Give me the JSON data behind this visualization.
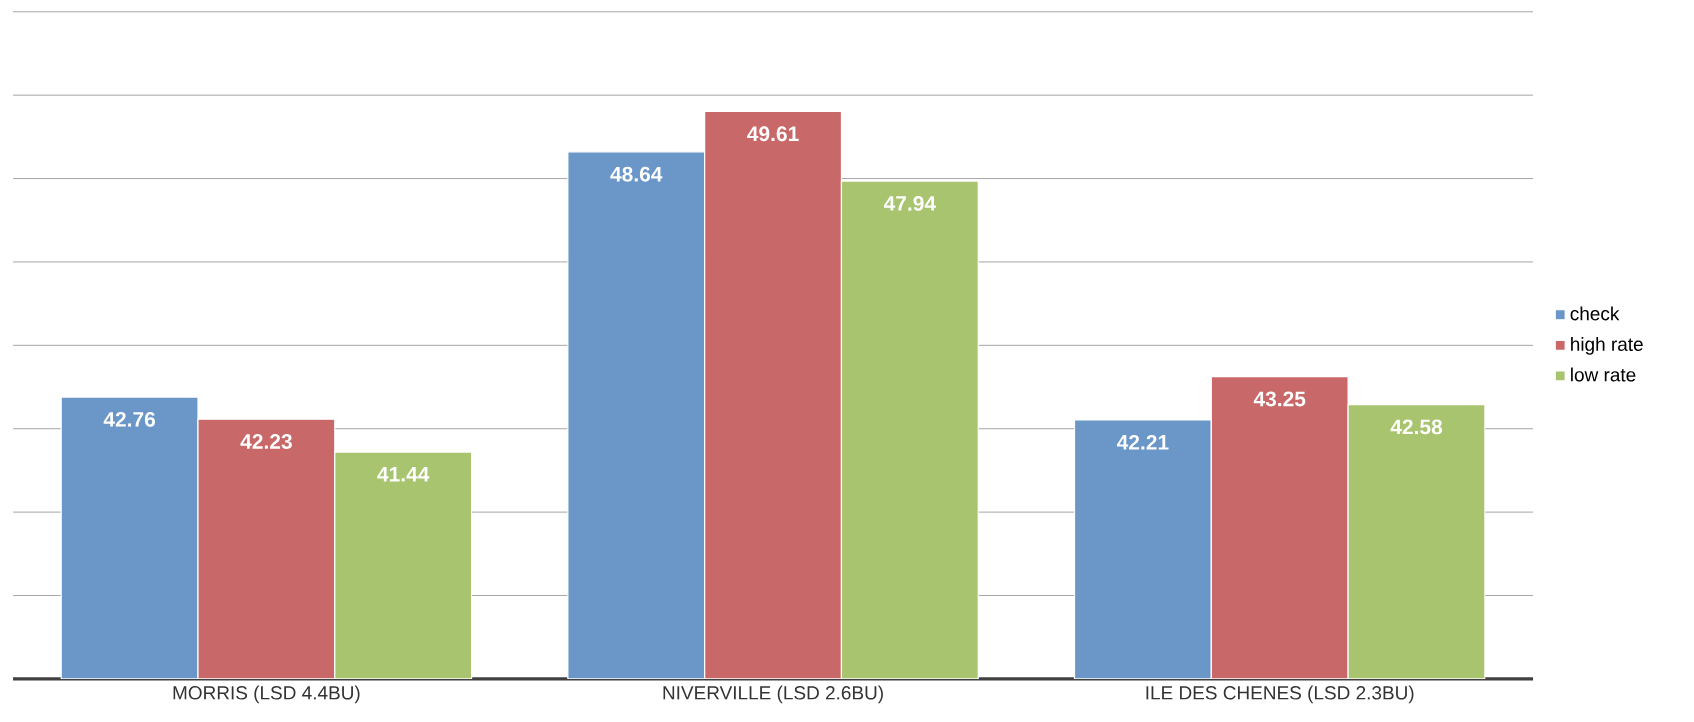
{
  "chart_data": {
    "type": "bar",
    "categories": [
      "MORRIS (LSD 4.4BU)",
      "NIVERVILLE (LSD 2.6BU)",
      "ILE DES CHENES (LSD 2.3BU)"
    ],
    "series": [
      {
        "name": "check",
        "color": "#6a96c8",
        "values": [
          42.76,
          48.64,
          42.21
        ]
      },
      {
        "name": "high rate",
        "color": "#c96868",
        "values": [
          42.23,
          49.61,
          43.25
        ]
      },
      {
        "name": "low rate",
        "color": "#a8c46e",
        "values": [
          41.44,
          47.94,
          42.58
        ]
      }
    ],
    "ylim": [
      36,
      52
    ],
    "tick_labels": "x",
    "grid": "y",
    "legend": "right",
    "data_labels": true
  }
}
